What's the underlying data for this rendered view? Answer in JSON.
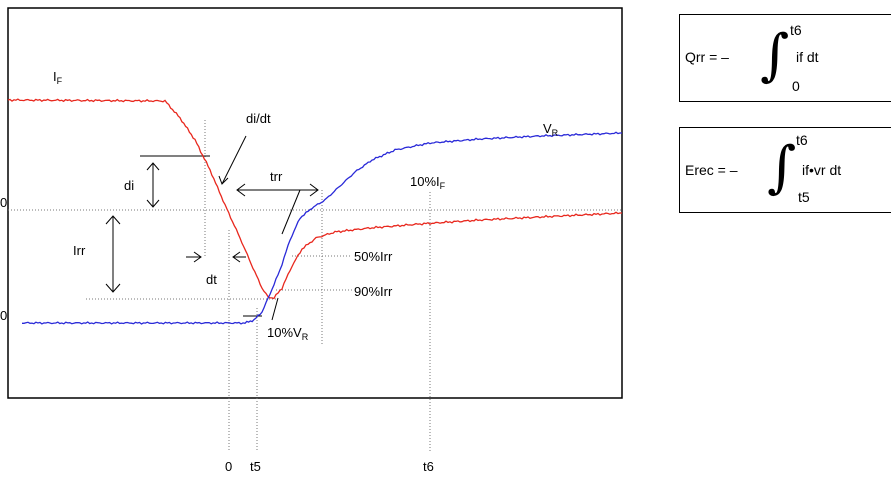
{
  "labels": {
    "i_f": "I",
    "i_f_sub": "F",
    "v_r": "V",
    "v_r_sub": "R",
    "di_dt": "di/dt",
    "di": "di",
    "trr": "trr",
    "irr": "Irr",
    "dt": "dt",
    "pct10_if": "10%I",
    "pct10_if_sub": "F",
    "pct50_irr": "50%Irr",
    "pct90_irr": "90%Irr",
    "pct10_vr": "10%V",
    "pct10_vr_sub": "R",
    "left_tick_upper": "0",
    "left_tick_lower": "0",
    "axis_zero": "0",
    "axis_t5": "t5",
    "axis_t6": "t6"
  },
  "formulas": {
    "qrr": {
      "lhs": "Qrr = –",
      "upper": "t6",
      "lower": "0",
      "integrand": "if dt"
    },
    "erec": {
      "lhs": "Erec = –",
      "upper": "t6",
      "lower": "t5",
      "integrand": "if•vr dt"
    }
  },
  "colors": {
    "current_trace": "#e8281e",
    "voltage_trace": "#2a2ad8",
    "guides": "#777777",
    "frame": "#000000"
  }
}
